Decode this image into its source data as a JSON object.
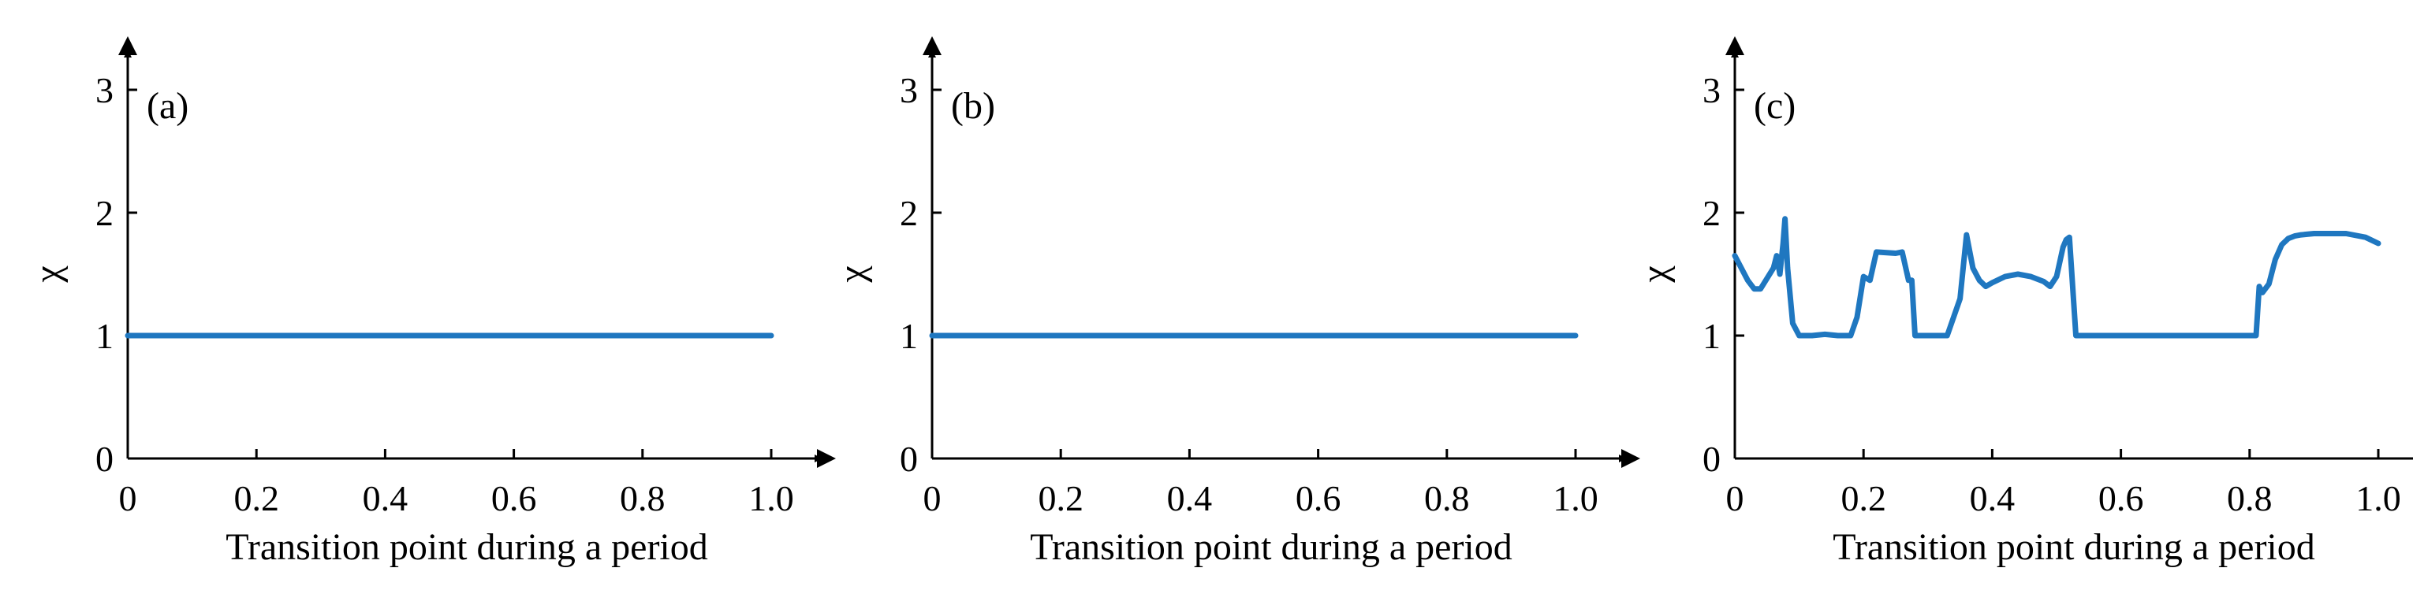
{
  "colors": {
    "line": "#1F77C0",
    "axis": "#000000"
  },
  "chart_data": [
    {
      "type": "line",
      "panel_label": "(a)",
      "xlabel": "Transition point during a period",
      "ylabel": "χ",
      "xlim": [
        0,
        1.0
      ],
      "ylim": [
        0,
        3
      ],
      "xticks": [
        0,
        0.2,
        0.4,
        0.6,
        0.8,
        1.0
      ],
      "xtick_labels": [
        "0",
        "0.2",
        "0.4",
        "0.6",
        "0.8",
        "1.0"
      ],
      "yticks": [
        0,
        1,
        2,
        3
      ],
      "ytick_labels": [
        "0",
        "1",
        "2",
        "3"
      ],
      "grid": false,
      "series": [
        {
          "x": [
            0,
            0.08,
            0.2,
            0.4,
            0.6,
            0.62,
            0.8,
            1.0
          ],
          "y": [
            1.0,
            1.0,
            1.0,
            1.0,
            1.0,
            1.0,
            1.0,
            1.0
          ]
        }
      ]
    },
    {
      "type": "line",
      "panel_label": "(b)",
      "xlabel": "Transition point during a period",
      "ylabel": "χ",
      "xlim": [
        0,
        1.0
      ],
      "ylim": [
        0,
        3
      ],
      "xticks": [
        0,
        0.2,
        0.4,
        0.6,
        0.8,
        1.0
      ],
      "xtick_labels": [
        "0",
        "0.2",
        "0.4",
        "0.6",
        "0.8",
        "1.0"
      ],
      "yticks": [
        0,
        1,
        2,
        3
      ],
      "ytick_labels": [
        "0",
        "1",
        "2",
        "3"
      ],
      "grid": false,
      "series": [
        {
          "x": [
            0,
            0.08,
            0.2,
            0.4,
            0.6,
            0.62,
            0.8,
            1.0
          ],
          "y": [
            1.0,
            1.0,
            1.0,
            1.0,
            1.0,
            1.0,
            1.0,
            1.0
          ]
        }
      ]
    },
    {
      "type": "line",
      "panel_label": "(c)",
      "xlabel": "Transition point during a period",
      "ylabel": "χ",
      "xlim": [
        0,
        1.0
      ],
      "ylim": [
        0,
        3
      ],
      "xticks": [
        0,
        0.2,
        0.4,
        0.6,
        0.8,
        1.0
      ],
      "xtick_labels": [
        "0",
        "0.2",
        "0.4",
        "0.6",
        "0.8",
        "1.0"
      ],
      "yticks": [
        0,
        1,
        2,
        3
      ],
      "ytick_labels": [
        "0",
        "1",
        "2",
        "3"
      ],
      "grid": false,
      "series": [
        {
          "x": [
            0.0,
            0.02,
            0.03,
            0.04,
            0.06,
            0.065,
            0.07,
            0.075,
            0.078,
            0.082,
            0.09,
            0.1,
            0.12,
            0.14,
            0.16,
            0.18,
            0.19,
            0.2,
            0.21,
            0.22,
            0.25,
            0.26,
            0.27,
            0.275,
            0.28,
            0.3,
            0.33,
            0.35,
            0.36,
            0.37,
            0.38,
            0.39,
            0.4,
            0.42,
            0.44,
            0.46,
            0.48,
            0.49,
            0.5,
            0.51,
            0.515,
            0.52,
            0.53,
            0.6,
            0.7,
            0.78,
            0.8,
            0.81,
            0.815,
            0.82,
            0.83,
            0.84,
            0.85,
            0.86,
            0.87,
            0.88,
            0.9,
            0.92,
            0.95,
            0.98,
            1.0
          ],
          "y": [
            1.65,
            1.45,
            1.38,
            1.38,
            1.55,
            1.65,
            1.5,
            1.75,
            1.95,
            1.55,
            1.1,
            1.0,
            1.0,
            1.01,
            1.0,
            1.0,
            1.15,
            1.48,
            1.45,
            1.68,
            1.67,
            1.68,
            1.45,
            1.45,
            1.0,
            1.0,
            1.0,
            1.3,
            1.82,
            1.55,
            1.45,
            1.4,
            1.43,
            1.48,
            1.5,
            1.48,
            1.44,
            1.4,
            1.48,
            1.72,
            1.78,
            1.8,
            1.0,
            1.0,
            1.0,
            1.0,
            1.0,
            1.0,
            1.4,
            1.35,
            1.42,
            1.62,
            1.74,
            1.79,
            1.81,
            1.82,
            1.83,
            1.83,
            1.83,
            1.8,
            1.75
          ]
        }
      ]
    }
  ]
}
